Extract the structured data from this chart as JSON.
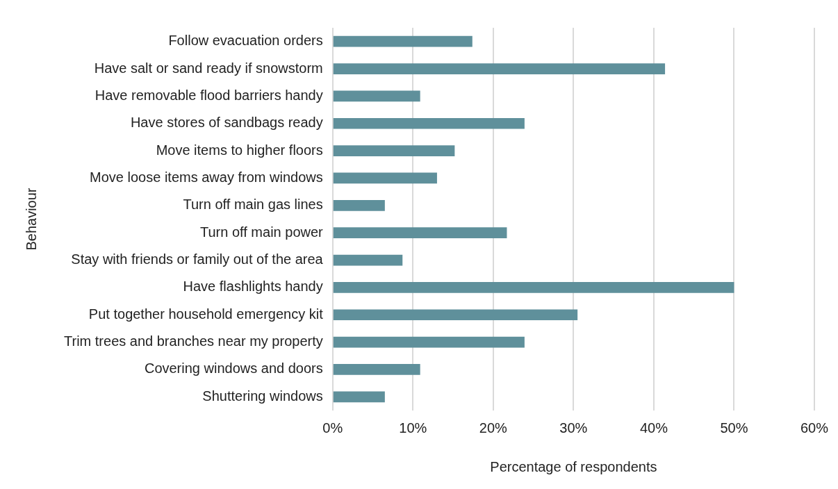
{
  "chart_data": {
    "type": "bar",
    "orientation": "horizontal",
    "xlabel": "Percentage of respondents",
    "ylabel": "Behaviour",
    "categories": [
      "Follow evacuation orders",
      "Have salt or sand ready if snowstorm",
      "Have removable flood barriers handy",
      "Have stores of sandbags ready",
      "Move items to higher floors",
      "Move loose items away from windows",
      "Turn off main gas lines",
      "Turn off main power",
      "Stay with friends or family out of the area",
      "Have flashlights handy",
      "Put together household emergency kit",
      "Trim trees and branches near my property",
      "Covering windows and doors",
      "Shuttering windows"
    ],
    "values": [
      17.4,
      41.4,
      10.9,
      23.9,
      15.2,
      13.0,
      6.5,
      21.7,
      8.7,
      50.0,
      30.5,
      23.9,
      10.9,
      6.5
    ],
    "color": "#5f909b",
    "xlim": [
      0,
      60
    ],
    "xticks": [
      {
        "value": 0,
        "label": "0%"
      },
      {
        "value": 10,
        "label": "10%"
      },
      {
        "value": 20,
        "label": "20%"
      },
      {
        "value": 30,
        "label": "30%"
      },
      {
        "value": 40,
        "label": "40%"
      },
      {
        "value": 50,
        "label": "50%"
      },
      {
        "value": 60,
        "label": "60%"
      }
    ],
    "grid": "x",
    "legend": false
  }
}
